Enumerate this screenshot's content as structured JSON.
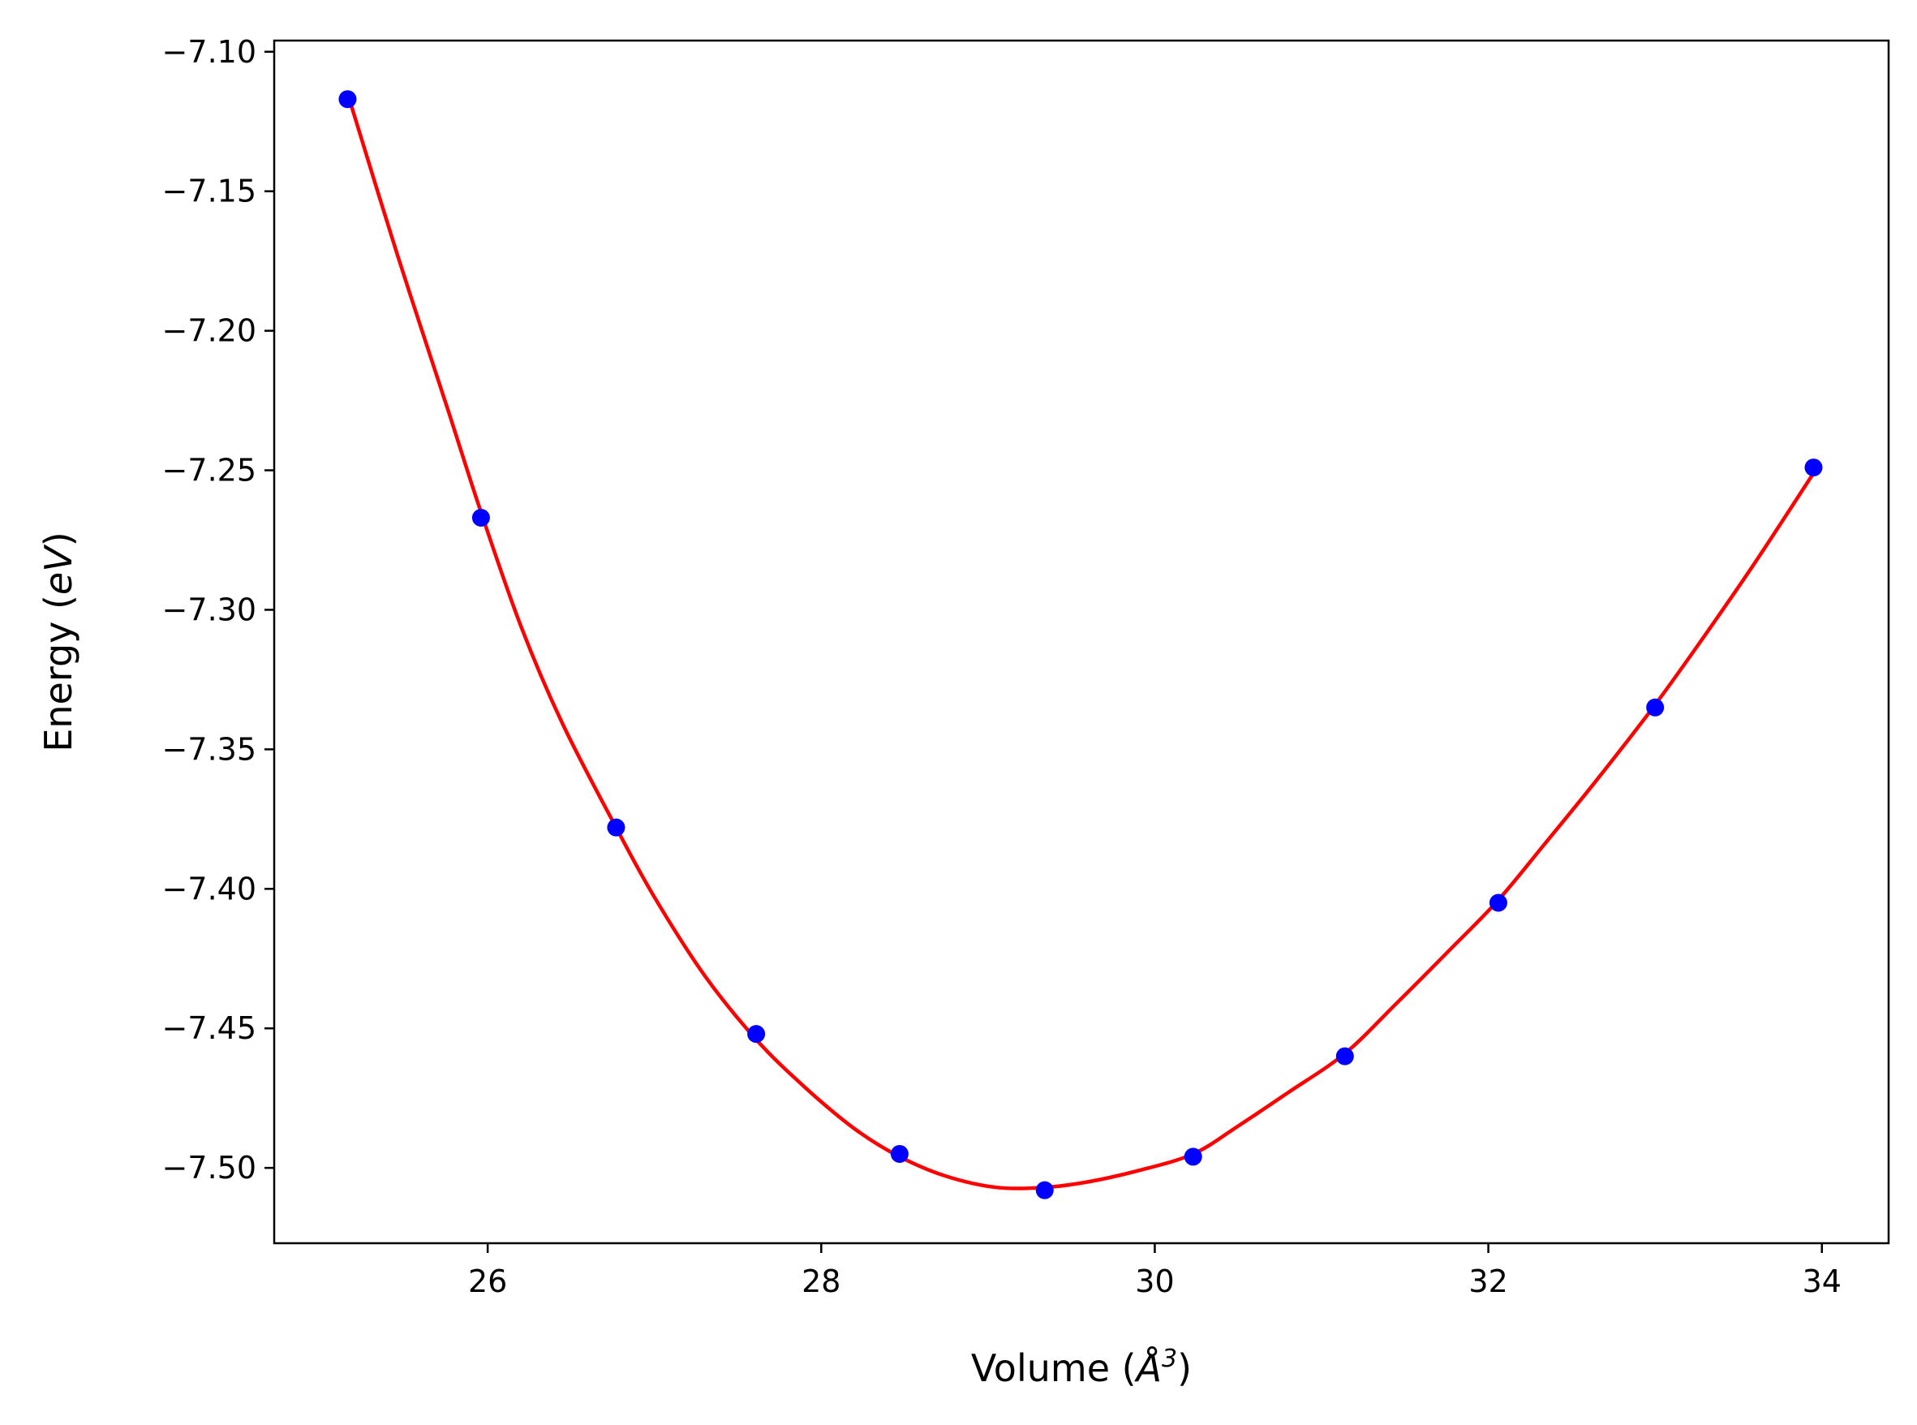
{
  "chart_data": {
    "type": "scatter",
    "xlabel": "Volume (Å³)",
    "ylabel": "Energy (eV)",
    "xlabel_parts": [
      "Volume (",
      "Å",
      "3",
      ")"
    ],
    "ylabel_parts": [
      "Energy (",
      "eV",
      ")"
    ],
    "xlim": [
      24.72,
      34.4
    ],
    "ylim": [
      -7.527,
      -7.096
    ],
    "xticks": [
      26,
      28,
      30,
      32,
      34
    ],
    "xtick_labels": [
      "26",
      "28",
      "30",
      "32",
      "34"
    ],
    "yticks": [
      -7.1,
      -7.15,
      -7.2,
      -7.25,
      -7.3,
      -7.35,
      -7.4,
      -7.45,
      -7.5
    ],
    "ytick_labels": [
      "−7.10",
      "−7.15",
      "−7.20",
      "−7.25",
      "−7.30",
      "−7.35",
      "−7.40",
      "−7.45",
      "−7.50"
    ],
    "grid": false,
    "legend": "none",
    "series": [
      {
        "kind": "points",
        "color": "#0000ff",
        "x": [
          25.16,
          25.96,
          26.77,
          27.61,
          28.47,
          29.34,
          30.23,
          31.14,
          32.06,
          33.0,
          33.95
        ],
        "y": [
          -7.117,
          -7.267,
          -7.378,
          -7.452,
          -7.495,
          -7.508,
          -7.496,
          -7.46,
          -7.405,
          -7.335,
          -7.249
        ]
      },
      {
        "kind": "fit-line",
        "color": "#ff0000",
        "x": [
          25.16,
          25.46,
          25.76,
          25.96,
          26.2,
          26.45,
          26.77,
          27.0,
          27.3,
          27.61,
          27.9,
          28.2,
          28.47,
          28.75,
          29.05,
          29.34,
          29.6,
          29.9,
          30.23,
          30.5,
          30.8,
          31.14,
          31.45,
          31.75,
          32.06,
          32.35,
          32.65,
          33.0,
          33.3,
          33.6,
          33.95
        ],
        "y": [
          -7.115,
          -7.173,
          -7.228,
          -7.265,
          -7.306,
          -7.341,
          -7.378,
          -7.403,
          -7.431,
          -7.454,
          -7.471,
          -7.486,
          -7.496,
          -7.503,
          -7.507,
          -7.507,
          -7.505,
          -7.501,
          -7.495,
          -7.485,
          -7.473,
          -7.459,
          -7.441,
          -7.423,
          -7.404,
          -7.383,
          -7.361,
          -7.334,
          -7.309,
          -7.283,
          -7.251
        ]
      }
    ]
  }
}
